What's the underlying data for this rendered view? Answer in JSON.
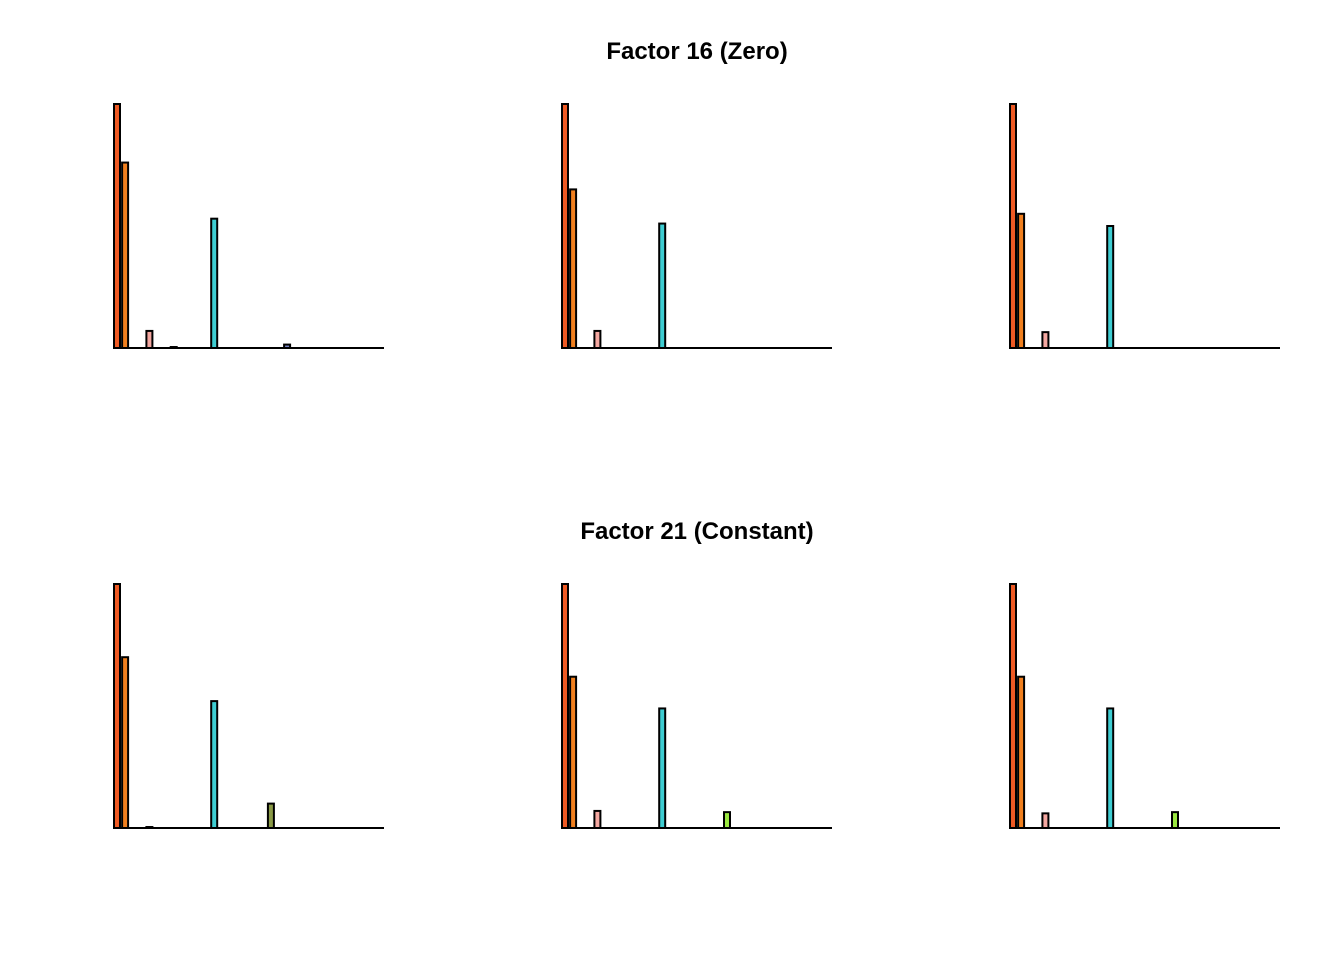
{
  "titles": {
    "row1": "Factor 16 (Zero)",
    "row2": "Factor 21 (Constant)"
  },
  "chart_data": [
    {
      "type": "bar",
      "panel": "factor16-1",
      "ylim": [
        0,
        1
      ],
      "grid": false,
      "values": [
        1.0,
        0.76,
        0,
        0,
        0.07,
        0,
        0,
        0.004,
        0,
        0,
        0,
        0,
        0.53,
        0,
        0.002,
        0,
        0,
        0.002,
        0,
        0,
        0,
        0.014,
        0,
        0,
        0,
        0,
        0.001,
        0,
        0,
        0,
        0,
        0,
        0,
        0
      ],
      "colors": [
        "#ee5a24",
        "#f07f1e",
        "#f07f1e",
        "#f07f1e",
        "#f4a7a0",
        "#f4a7a0",
        "#f4a7a0",
        "#f4a7a0",
        "#f4a7a0",
        "#f4a7a0",
        "#f4a7a0",
        "#3ecdd2",
        "#3ecdd2",
        "#3ecdd2",
        "#3ecdd2",
        "#3ecdd2",
        "#3ecdd2",
        "#3ecdd2",
        "#3ecdd2",
        "#3ecdd2",
        "#3ecdd2",
        "#7a86c8",
        "#7a86c8",
        "#7a86c8",
        "#7a86c8",
        "#7a86c8",
        "#7a86c8",
        "#7a86c8",
        "#7a86c8",
        "#7a86c8",
        "#7a86c8",
        "#7a86c8",
        "#7a86c8",
        "#7a86c8"
      ]
    },
    {
      "type": "bar",
      "panel": "factor16-2",
      "ylim": [
        0,
        1
      ],
      "grid": false,
      "values": [
        1.0,
        0.65,
        0,
        0,
        0.07,
        0,
        0,
        0,
        0,
        0,
        0,
        0,
        0.51,
        0,
        0,
        0,
        0,
        0,
        0,
        0,
        0.002,
        0,
        0,
        0,
        0,
        0,
        0.001,
        0,
        0,
        0,
        0,
        0,
        0,
        0
      ],
      "colors": [
        "#ee5a24",
        "#f07f1e",
        "#f07f1e",
        "#f07f1e",
        "#f4a7a0",
        "#f4a7a0",
        "#f4a7a0",
        "#f4a7a0",
        "#f4a7a0",
        "#f4a7a0",
        "#f4a7a0",
        "#3ecdd2",
        "#3ecdd2",
        "#3ecdd2",
        "#3ecdd2",
        "#3ecdd2",
        "#3ecdd2",
        "#3ecdd2",
        "#3ecdd2",
        "#3ecdd2",
        "#3ecdd2",
        "#3ecdd2",
        "#3ecdd2",
        "#3ecdd2",
        "#3ecdd2",
        "#3ecdd2",
        "#3ecdd2",
        "#3ecdd2",
        "#3ecdd2",
        "#3ecdd2",
        "#3ecdd2",
        "#3ecdd2",
        "#3ecdd2",
        "#3ecdd2"
      ]
    },
    {
      "type": "bar",
      "panel": "factor16-3",
      "ylim": [
        0,
        1
      ],
      "grid": false,
      "values": [
        1.0,
        0.55,
        0,
        0,
        0.065,
        0,
        0,
        0,
        0,
        0,
        0,
        0,
        0.5,
        0,
        0,
        0,
        0,
        0,
        0,
        0,
        0.002,
        0,
        0,
        0,
        0,
        0,
        0.001,
        0,
        0,
        0,
        0,
        0,
        0,
        0
      ],
      "colors": [
        "#ee5a24",
        "#f07f1e",
        "#f07f1e",
        "#f07f1e",
        "#f4a7a0",
        "#f4a7a0",
        "#f4a7a0",
        "#f4a7a0",
        "#f4a7a0",
        "#f4a7a0",
        "#f4a7a0",
        "#3ecdd2",
        "#3ecdd2",
        "#3ecdd2",
        "#3ecdd2",
        "#3ecdd2",
        "#3ecdd2",
        "#3ecdd2",
        "#3ecdd2",
        "#3ecdd2",
        "#3ecdd2",
        "#3ecdd2",
        "#3ecdd2",
        "#3ecdd2",
        "#3ecdd2",
        "#3ecdd2",
        "#3ecdd2",
        "#3ecdd2",
        "#3ecdd2",
        "#3ecdd2",
        "#3ecdd2",
        "#3ecdd2",
        "#3ecdd2",
        "#3ecdd2"
      ]
    },
    {
      "type": "bar",
      "panel": "factor21-1",
      "ylim": [
        0,
        1
      ],
      "grid": false,
      "values": [
        1.0,
        0.7,
        0,
        0,
        0.004,
        0,
        0,
        0,
        0,
        0,
        0,
        0,
        0.52,
        0,
        0.002,
        0,
        0,
        0,
        0,
        0.1,
        0,
        0,
        0,
        0,
        0,
        0,
        0.001,
        0,
        0,
        0,
        0,
        0,
        0,
        0
      ],
      "colors": [
        "#ee5a24",
        "#f07f1e",
        "#f07f1e",
        "#f07f1e",
        "#f4a7a0",
        "#f4a7a0",
        "#f4a7a0",
        "#f4a7a0",
        "#f4a7a0",
        "#f4a7a0",
        "#f4a7a0",
        "#3ecdd2",
        "#3ecdd2",
        "#3ecdd2",
        "#3ecdd2",
        "#3ecdd2",
        "#3ecdd2",
        "#3ecdd2",
        "#3ecdd2",
        "#8a9a46",
        "#8a9a46",
        "#8a9a46",
        "#8a9a46",
        "#8a9a46",
        "#8a9a46",
        "#8a9a46",
        "#8a9a46",
        "#8a9a46",
        "#8a9a46",
        "#8a9a46",
        "#8a9a46",
        "#8a9a46",
        "#8a9a46",
        "#8a9a46"
      ]
    },
    {
      "type": "bar",
      "panel": "factor21-2",
      "ylim": [
        0,
        1
      ],
      "grid": false,
      "values": [
        1.0,
        0.62,
        0,
        0,
        0.07,
        0,
        0,
        0,
        0,
        0,
        0,
        0,
        0.49,
        0,
        0,
        0,
        0,
        0,
        0,
        0,
        0.065,
        0,
        0,
        0,
        0,
        0,
        0.001,
        0,
        0,
        0,
        0,
        0,
        0,
        0
      ],
      "colors": [
        "#ee5a24",
        "#f07f1e",
        "#f07f1e",
        "#f07f1e",
        "#f4a7a0",
        "#f4a7a0",
        "#f4a7a0",
        "#f4a7a0",
        "#f4a7a0",
        "#f4a7a0",
        "#f4a7a0",
        "#3ecdd2",
        "#3ecdd2",
        "#3ecdd2",
        "#3ecdd2",
        "#3ecdd2",
        "#3ecdd2",
        "#3ecdd2",
        "#3ecdd2",
        "#3ecdd2",
        "#9be840",
        "#9be840",
        "#9be840",
        "#9be840",
        "#9be840",
        "#9be840",
        "#9be840",
        "#9be840",
        "#9be840",
        "#9be840",
        "#9be840",
        "#9be840",
        "#9be840",
        "#9be840"
      ]
    },
    {
      "type": "bar",
      "panel": "factor21-3",
      "ylim": [
        0,
        1
      ],
      "grid": false,
      "values": [
        1.0,
        0.62,
        0,
        0,
        0.06,
        0,
        0,
        0,
        0,
        0,
        0,
        0,
        0.49,
        0,
        0,
        0,
        0,
        0,
        0,
        0,
        0.065,
        0,
        0,
        0,
        0,
        0,
        0.001,
        0,
        0,
        0,
        0,
        0,
        0,
        0
      ],
      "colors": [
        "#ee5a24",
        "#f07f1e",
        "#f07f1e",
        "#f07f1e",
        "#f4a7a0",
        "#f4a7a0",
        "#f4a7a0",
        "#f4a7a0",
        "#f4a7a0",
        "#f4a7a0",
        "#f4a7a0",
        "#3ecdd2",
        "#3ecdd2",
        "#3ecdd2",
        "#3ecdd2",
        "#3ecdd2",
        "#3ecdd2",
        "#3ecdd2",
        "#3ecdd2",
        "#3ecdd2",
        "#9be840",
        "#9be840",
        "#9be840",
        "#9be840",
        "#9be840",
        "#9be840",
        "#9be840",
        "#9be840",
        "#9be840",
        "#9be840",
        "#9be840",
        "#9be840",
        "#9be840",
        "#9be840"
      ]
    }
  ]
}
